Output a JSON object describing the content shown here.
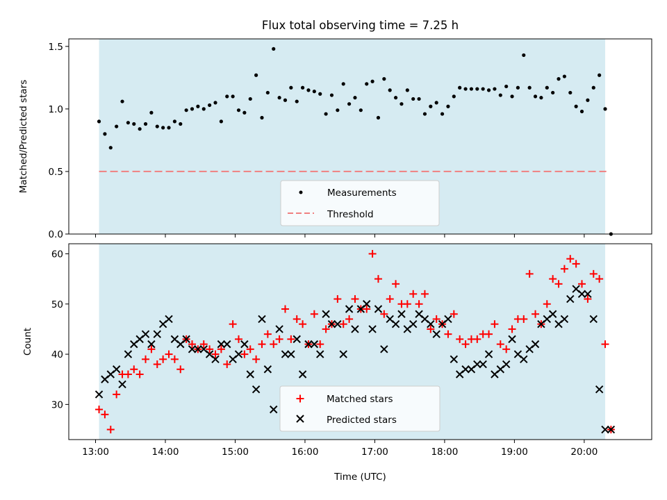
{
  "chart_data": [
    {
      "type": "scatter",
      "title": "Flux total observing time = 7.25 h",
      "xlabel": "",
      "ylabel": "Matched/Predicted stars",
      "xlim": [
        "12:37",
        "20:58"
      ],
      "ylim": [
        0,
        1.56
      ],
      "yticks": [
        "0.0",
        "0.5",
        "1.0",
        "1.5"
      ],
      "observing_window": [
        "13:03",
        "20:18"
      ],
      "threshold": 0.5,
      "legend": {
        "position": "lower-center",
        "entries": [
          "Measurements",
          "Threshold"
        ]
      },
      "series": [
        {
          "name": "Measurements",
          "marker": "dot",
          "color": "#000000",
          "x": [
            "13:03",
            "13:08",
            "13:13",
            "13:18",
            "13:23",
            "13:28",
            "13:33",
            "13:38",
            "13:43",
            "13:48",
            "13:53",
            "13:58",
            "14:03",
            "14:08",
            "14:13",
            "14:18",
            "14:23",
            "14:28",
            "14:33",
            "14:38",
            "14:43",
            "14:48",
            "14:53",
            "14:58",
            "15:03",
            "15:08",
            "15:13",
            "15:18",
            "15:23",
            "15:28",
            "15:33",
            "15:38",
            "15:43",
            "15:48",
            "15:53",
            "15:58",
            "16:03",
            "16:08",
            "16:13",
            "16:18",
            "16:23",
            "16:28",
            "16:33",
            "16:38",
            "16:43",
            "16:48",
            "16:53",
            "16:58",
            "17:03",
            "17:08",
            "17:13",
            "17:18",
            "17:23",
            "17:28",
            "17:33",
            "17:38",
            "17:43",
            "17:48",
            "17:53",
            "17:58",
            "18:03",
            "18:08",
            "18:13",
            "18:18",
            "18:23",
            "18:28",
            "18:33",
            "18:38",
            "18:43",
            "18:48",
            "18:53",
            "18:58",
            "19:03",
            "19:08",
            "19:13",
            "19:18",
            "19:23",
            "19:28",
            "19:33",
            "19:38",
            "19:43",
            "19:48",
            "19:53",
            "19:58",
            "20:03",
            "20:08",
            "20:13",
            "20:18",
            "20:23"
          ],
          "y": [
            0.9,
            0.8,
            0.69,
            0.86,
            1.06,
            0.89,
            0.88,
            0.84,
            0.88,
            0.97,
            0.86,
            0.85,
            0.85,
            0.9,
            0.88,
            0.99,
            1.0,
            1.02,
            1.0,
            1.03,
            1.05,
            0.9,
            1.1,
            1.1,
            0.99,
            0.97,
            1.08,
            1.27,
            0.93,
            1.13,
            1.48,
            1.09,
            1.07,
            1.17,
            1.06,
            1.17,
            1.15,
            1.14,
            1.12,
            0.96,
            1.11,
            0.99,
            1.2,
            1.04,
            1.09,
            0.99,
            1.2,
            1.22,
            0.93,
            1.24,
            1.15,
            1.09,
            1.04,
            1.15,
            1.08,
            1.08,
            0.96,
            1.02,
            1.05,
            0.96,
            1.02,
            1.1,
            1.17,
            1.16,
            1.16,
            1.16,
            1.16,
            1.15,
            1.16,
            1.11,
            1.18,
            1.1,
            1.17,
            1.43,
            1.17,
            1.1,
            1.09,
            1.17,
            1.13,
            1.24,
            1.26,
            1.13,
            1.02,
            0.98,
            1.07,
            1.17,
            1.27,
            1.0,
            0.0
          ]
        }
      ]
    },
    {
      "type": "scatter",
      "title": "",
      "xlabel": "Time (UTC)",
      "ylabel": "Count",
      "xlim": [
        "12:37",
        "20:58"
      ],
      "ylim": [
        23,
        62
      ],
      "xticks": [
        "13:00",
        "14:00",
        "15:00",
        "16:00",
        "17:00",
        "18:00",
        "19:00",
        "20:00"
      ],
      "yticks": [
        "30",
        "40",
        "50",
        "60"
      ],
      "observing_window": [
        "13:03",
        "20:18"
      ],
      "legend": {
        "position": "lower-center",
        "entries": [
          "Matched stars",
          "Predicted stars"
        ]
      },
      "series": [
        {
          "name": "Matched stars",
          "marker": "plus",
          "color": "#ff0000",
          "x": [
            "13:03",
            "13:08",
            "13:13",
            "13:18",
            "13:23",
            "13:28",
            "13:33",
            "13:38",
            "13:43",
            "13:48",
            "13:53",
            "13:58",
            "14:03",
            "14:08",
            "14:13",
            "14:18",
            "14:23",
            "14:28",
            "14:33",
            "14:38",
            "14:43",
            "14:48",
            "14:53",
            "14:58",
            "15:03",
            "15:08",
            "15:13",
            "15:18",
            "15:23",
            "15:28",
            "15:33",
            "15:38",
            "15:43",
            "15:48",
            "15:53",
            "15:58",
            "16:03",
            "16:08",
            "16:13",
            "16:18",
            "16:23",
            "16:28",
            "16:33",
            "16:38",
            "16:43",
            "16:48",
            "16:53",
            "16:58",
            "17:03",
            "17:08",
            "17:13",
            "17:18",
            "17:23",
            "17:28",
            "17:33",
            "17:38",
            "17:43",
            "17:48",
            "17:53",
            "17:58",
            "18:03",
            "18:08",
            "18:13",
            "18:18",
            "18:23",
            "18:28",
            "18:33",
            "18:38",
            "18:43",
            "18:48",
            "18:53",
            "18:58",
            "19:03",
            "19:08",
            "19:13",
            "19:18",
            "19:23",
            "19:28",
            "19:33",
            "19:38",
            "19:43",
            "19:48",
            "19:53",
            "19:58",
            "20:03",
            "20:08",
            "20:13",
            "20:18",
            "20:23"
          ],
          "y": [
            29,
            28,
            25,
            32,
            36,
            36,
            37,
            36,
            39,
            41,
            38,
            39,
            40,
            39,
            37,
            43,
            42,
            41,
            42,
            41,
            40,
            41,
            38,
            46,
            43,
            40,
            41,
            39,
            42,
            44,
            42,
            43,
            49,
            43,
            47,
            46,
            42,
            48,
            42,
            45,
            46,
            51,
            46,
            47,
            51,
            49,
            49,
            60,
            55,
            48,
            51,
            54,
            50,
            50,
            52,
            50,
            52,
            45,
            47,
            46,
            44,
            48,
            43,
            42,
            43,
            43,
            44,
            44,
            46,
            42,
            41,
            45,
            47,
            47,
            56,
            48,
            46,
            50,
            55,
            54,
            57,
            59,
            58,
            54,
            51,
            56,
            55,
            42,
            25
          ]
        },
        {
          "name": "Predicted stars",
          "marker": "x",
          "color": "#000000",
          "x": [
            "13:03",
            "13:08",
            "13:13",
            "13:18",
            "13:23",
            "13:28",
            "13:33",
            "13:38",
            "13:43",
            "13:48",
            "13:53",
            "13:58",
            "14:03",
            "14:08",
            "14:13",
            "14:18",
            "14:23",
            "14:28",
            "14:33",
            "14:38",
            "14:43",
            "14:48",
            "14:53",
            "14:58",
            "15:03",
            "15:08",
            "15:13",
            "15:18",
            "15:23",
            "15:28",
            "15:33",
            "15:38",
            "15:43",
            "15:48",
            "15:53",
            "15:58",
            "16:03",
            "16:08",
            "16:13",
            "16:18",
            "16:23",
            "16:28",
            "16:33",
            "16:38",
            "16:43",
            "16:48",
            "16:53",
            "16:58",
            "17:03",
            "17:08",
            "17:13",
            "17:18",
            "17:23",
            "17:28",
            "17:33",
            "17:38",
            "17:43",
            "17:48",
            "17:53",
            "17:58",
            "18:03",
            "18:08",
            "18:13",
            "18:18",
            "18:23",
            "18:28",
            "18:33",
            "18:38",
            "18:43",
            "18:48",
            "18:53",
            "18:58",
            "19:03",
            "19:08",
            "19:13",
            "19:18",
            "19:23",
            "19:28",
            "19:33",
            "19:38",
            "19:43",
            "19:48",
            "19:53",
            "19:58",
            "20:03",
            "20:08",
            "20:13",
            "20:18",
            "20:23"
          ],
          "y": [
            32,
            35,
            36,
            37,
            34,
            40,
            42,
            43,
            44,
            42,
            44,
            46,
            47,
            43,
            42,
            43,
            41,
            41,
            41,
            40,
            39,
            42,
            42,
            39,
            40,
            42,
            36,
            33,
            47,
            37,
            29,
            45,
            40,
            40,
            43,
            36,
            42,
            42,
            40,
            48,
            46,
            46,
            40,
            49,
            45,
            49,
            50,
            45,
            49,
            41,
            47,
            46,
            48,
            45,
            46,
            48,
            47,
            46,
            44,
            46,
            47,
            39,
            36,
            37,
            37,
            38,
            38,
            40,
            36,
            37,
            38,
            43,
            40,
            39,
            41,
            42,
            46,
            47,
            48,
            46,
            47,
            51,
            53,
            52,
            52,
            47,
            33,
            25,
            25
          ]
        }
      ]
    }
  ]
}
